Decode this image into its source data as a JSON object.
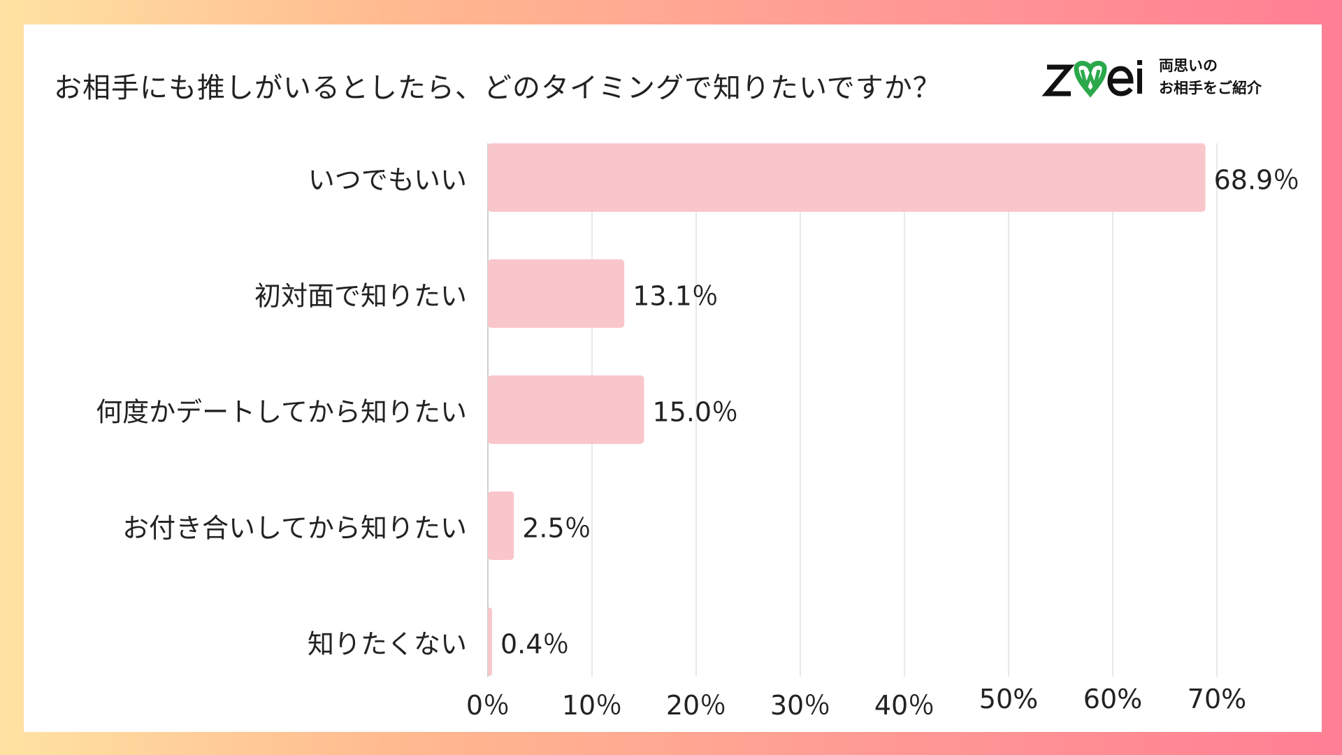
{
  "chart_data": {
    "type": "bar",
    "orientation": "horizontal",
    "title": "お相手にも推しがいるとしたら、どのタイミングで知りたいですか？",
    "categories": [
      "いつでもいい",
      "初対面で知りたい",
      "何度かデートしてから知りたい",
      "お付き合いしてから知りたい",
      "知りたくない"
    ],
    "values": [
      68.9,
      13.1,
      15.0,
      2.5,
      0.4
    ],
    "value_labels": [
      "68.9％",
      "13.1％",
      "15.0％",
      "2.5％",
      "0.4％"
    ],
    "xlim": [
      0,
      70
    ],
    "xticks": [
      0,
      10,
      20,
      30,
      40,
      50,
      60,
      70
    ],
    "xtick_labels": [
      "0％",
      "10％",
      "20％",
      "30％",
      "40％",
      "50%",
      "60%",
      "70%"
    ],
    "grid": true,
    "bar_color": "#f9c6cc",
    "grid_color": "#d9d9d9"
  },
  "logo": {
    "wordmark": "zwei",
    "tagline_line1": "両思いの",
    "tagline_line2": "お相手をご紹介",
    "heart_color": "#2aa84a",
    "text_color": "#111111"
  }
}
